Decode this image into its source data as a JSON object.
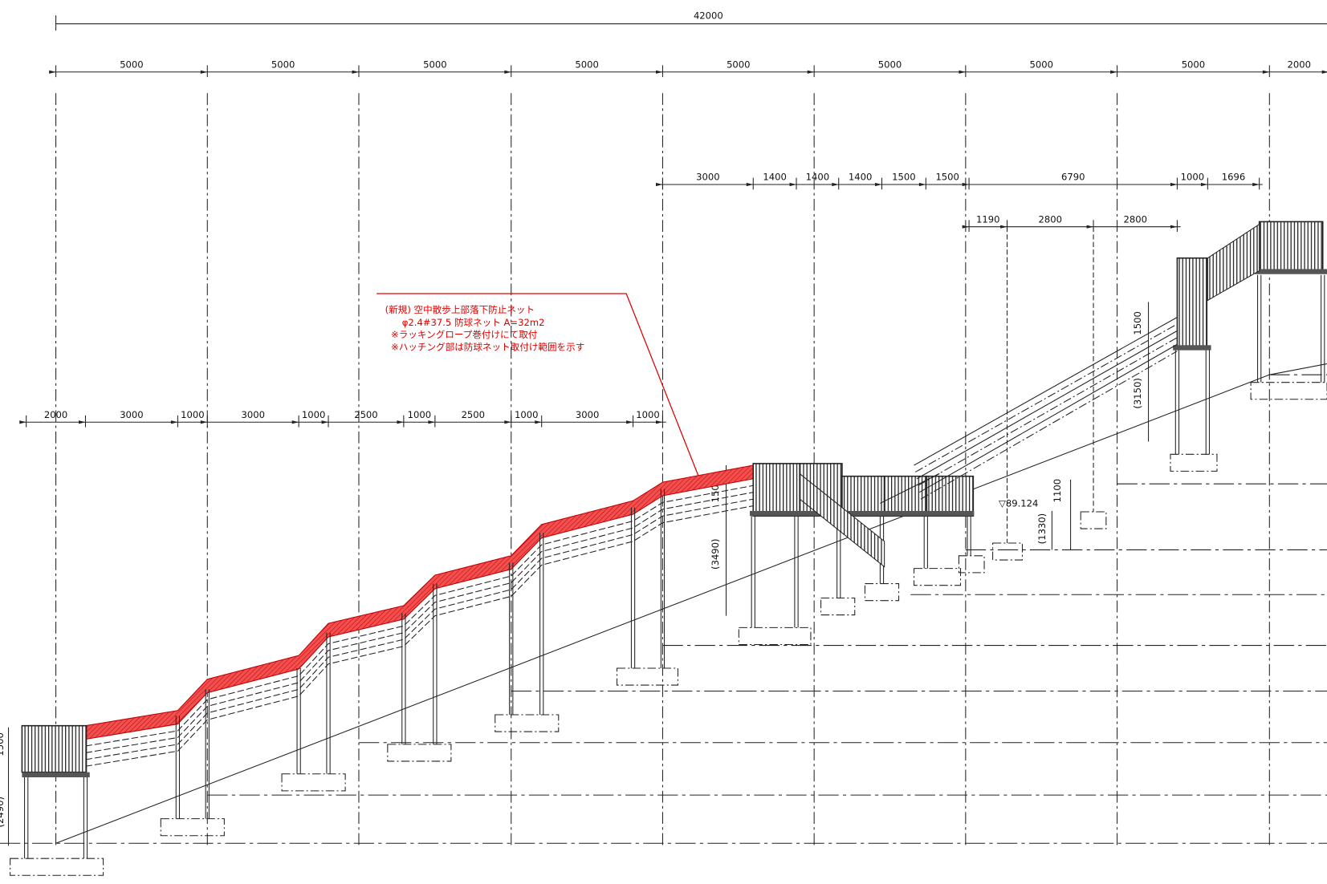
{
  "dimensions": {
    "total": "42000",
    "top_row": [
      "5000",
      "5000",
      "5000",
      "5000",
      "5000",
      "5000",
      "5000",
      "5000",
      "2000"
    ],
    "mid_row": [
      "3000",
      "1400",
      "1400",
      "1400",
      "1500",
      "1500",
      "6790",
      "1000",
      "1696"
    ],
    "third_row": [
      "1190",
      "2800",
      "2800"
    ],
    "left_row": [
      "2000",
      "3000",
      "1000",
      "3000",
      "1000",
      "2500",
      "1000",
      "2500",
      "1000",
      "3000",
      "1000"
    ],
    "vertical": [
      "1500",
      "(3150)",
      "1500",
      "(3490)",
      "1100",
      "(1330)",
      "1500",
      "(2490)"
    ]
  },
  "level": "▽89.124",
  "note": [
    "(新規) 空中散歩上部落下防止ネット",
    "φ2.4#37.5 防球ネット A=32m2",
    "※ラッキングロープ巻付けにて取付",
    "※ハッチング部は防球ネット取付け範囲を示す"
  ]
}
